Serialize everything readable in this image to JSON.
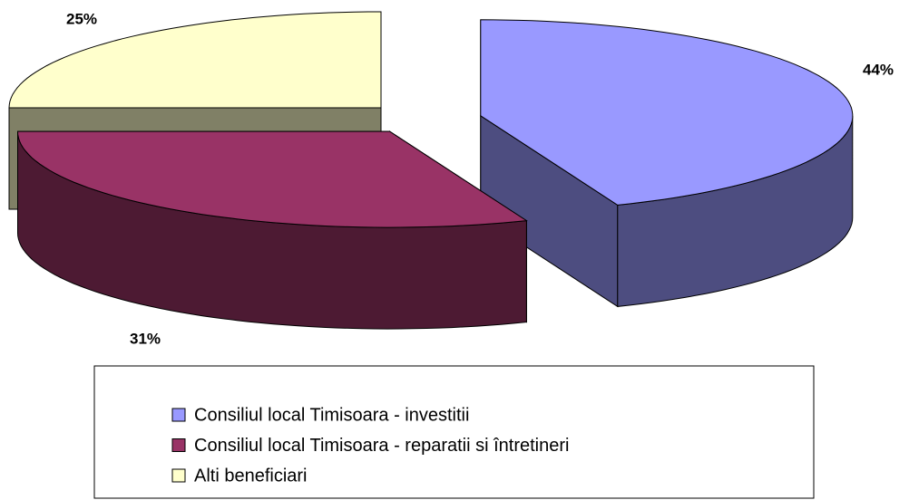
{
  "chart_data": {
    "type": "pie",
    "categories": [
      "Consiliul local Timisoara - investitii",
      "Consiliul local Timisoara - reparatii si întretineri",
      "Alti beneficiari"
    ],
    "values": [
      44,
      31,
      25
    ],
    "value_labels": [
      "44%",
      "31%",
      "25%"
    ],
    "colors": [
      "#9999ff",
      "#993366",
      "#ffffcc"
    ],
    "exploded": true,
    "three_d": true,
    "legend": "bottom"
  }
}
